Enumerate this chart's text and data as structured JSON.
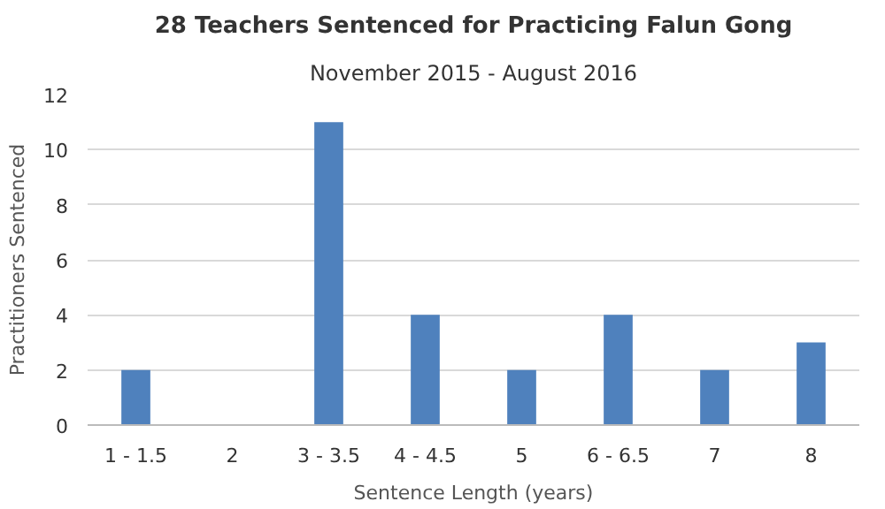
{
  "chart_data": {
    "type": "bar",
    "title": "28 Teachers Sentenced for Practicing Falun Gong",
    "subtitle": "November 2015 - August 2016",
    "xlabel": "Sentence Length (years)",
    "ylabel": "Practitioners Sentenced",
    "categories": [
      "1 - 1.5",
      "2",
      "3 - 3.5",
      "4 - 4.5",
      "5",
      "6 - 6.5",
      "7",
      "8"
    ],
    "values": [
      2,
      0,
      11,
      4,
      2,
      4,
      2,
      3
    ],
    "color": "#4f81bd",
    "ylim": [
      0,
      12
    ],
    "yticks": [
      0,
      2,
      4,
      6,
      8,
      10,
      12
    ],
    "grid": "y"
  }
}
